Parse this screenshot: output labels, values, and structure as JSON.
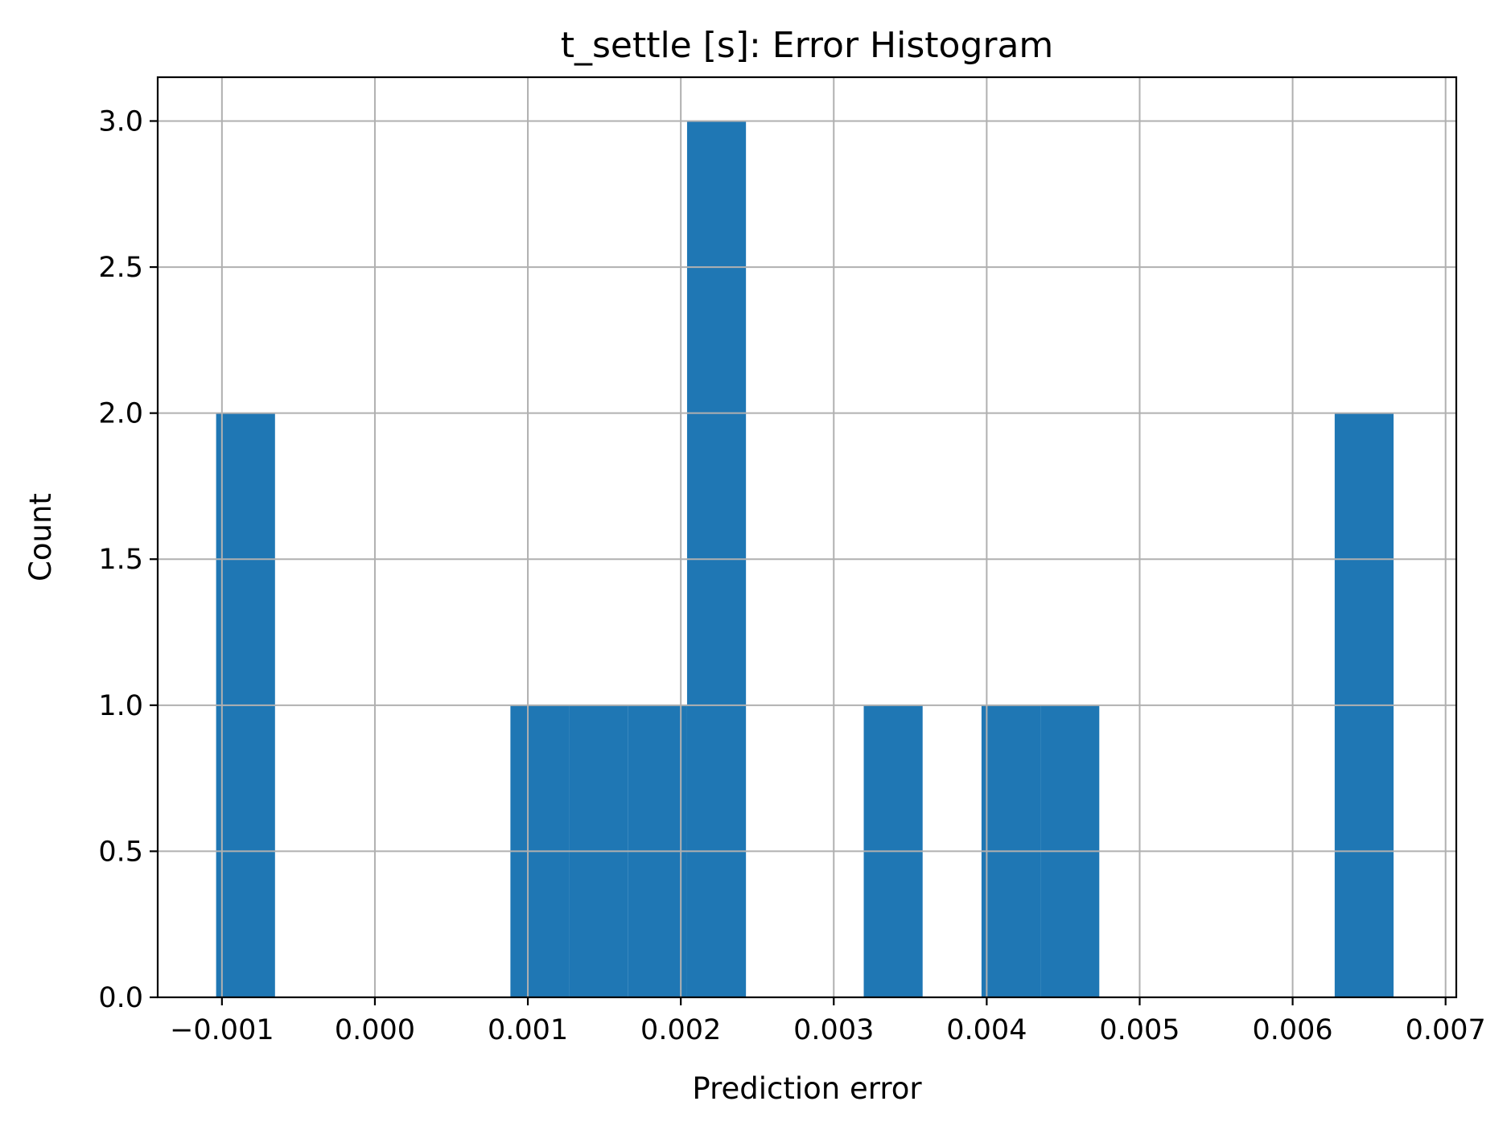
{
  "chart_data": {
    "type": "bar",
    "title": "t_settle [s]: Error Histogram",
    "xlabel": "Prediction error",
    "ylabel": "Count",
    "xlim": [
      -0.00142,
      0.00707
    ],
    "ylim": [
      0,
      3.15
    ],
    "grid": true,
    "color": "#1f77b4",
    "x_ticks": [
      -0.001,
      0.0,
      0.001,
      0.002,
      0.003,
      0.004,
      0.005,
      0.006,
      0.007
    ],
    "x_tick_labels": [
      "−0.001",
      "0.000",
      "0.001",
      "0.002",
      "0.003",
      "0.004",
      "0.005",
      "0.006",
      "0.007"
    ],
    "y_ticks": [
      0.0,
      0.5,
      1.0,
      1.5,
      2.0,
      2.5,
      3.0
    ],
    "y_tick_labels": [
      "0.0",
      "0.5",
      "1.0",
      "1.5",
      "2.0",
      "2.5",
      "3.0"
    ],
    "bin_width": 0.000385,
    "bins": [
      {
        "x0": -0.001038,
        "x1": -0.000653,
        "count": 2
      },
      {
        "x0": 0.000886,
        "x1": 0.001271,
        "count": 1
      },
      {
        "x0": 0.001271,
        "x1": 0.001656,
        "count": 1
      },
      {
        "x0": 0.001656,
        "x1": 0.002041,
        "count": 1
      },
      {
        "x0": 0.002041,
        "x1": 0.002426,
        "count": 3
      },
      {
        "x0": 0.003196,
        "x1": 0.003581,
        "count": 1
      },
      {
        "x0": 0.003966,
        "x1": 0.004351,
        "count": 1
      },
      {
        "x0": 0.004351,
        "x1": 0.004736,
        "count": 1
      },
      {
        "x0": 0.006275,
        "x1": 0.00666,
        "count": 2
      }
    ]
  }
}
